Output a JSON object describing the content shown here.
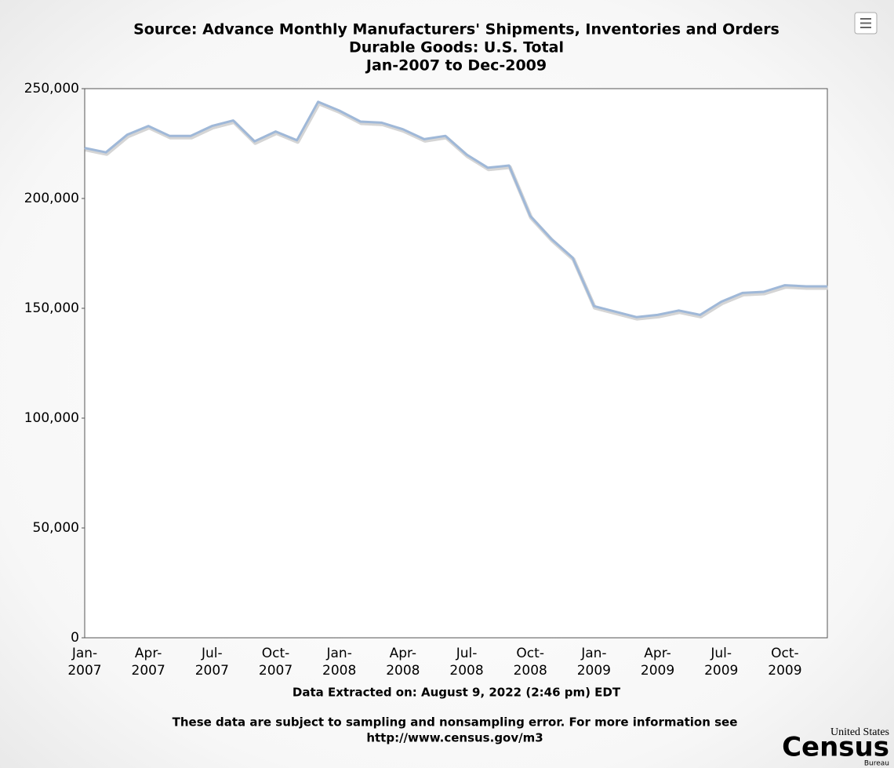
{
  "chart_data": {
    "type": "line",
    "title_lines": [
      "Source: Advance Monthly Manufacturers' Shipments, Inventories and Orders",
      "Durable Goods: U.S. Total",
      "Jan-2007 to Dec-2009"
    ],
    "categories": [
      "Jan-\n2007",
      null,
      null,
      "Apr-\n2007",
      null,
      null,
      "Jul-\n2007",
      null,
      null,
      "Oct-\n2007",
      null,
      null,
      "Jan-\n2008",
      null,
      null,
      "Apr-\n2008",
      null,
      null,
      "Jul-\n2008",
      null,
      null,
      "Oct-\n2008",
      null,
      null,
      "Jan-\n2009",
      null,
      null,
      "Apr-\n2009",
      null,
      null,
      "Jul-\n2009",
      null,
      null,
      "Oct-\n2009",
      null,
      null
    ],
    "values": [
      223000,
      221000,
      229000,
      233000,
      228500,
      228500,
      233000,
      235500,
      226000,
      230500,
      226500,
      244000,
      240000,
      235000,
      234500,
      231500,
      227000,
      228500,
      220000,
      214000,
      215000,
      192000,
      181500,
      173000,
      151000,
      148500,
      146000,
      147000,
      149000,
      147000,
      153000,
      157000,
      157500,
      160500,
      160000,
      160000
    ],
    "color": "#9fb8d8",
    "ylim": [
      0,
      250000
    ],
    "yticks": [
      0,
      {
        "value": 50000,
        "label": "50,000"
      },
      {
        "value": 100000,
        "label": "100,000"
      },
      {
        "value": 150000,
        "label": "150,000"
      },
      {
        "value": 200000,
        "label": "200,000"
      },
      {
        "value": 250000,
        "label": "250,000"
      }
    ],
    "grid": false,
    "extracted": "Data Extracted on: August 9, 2022 (2:46 pm) EDT",
    "footnote_lines": [
      "These data are subject to sampling and nonsampling error. For more information see",
      "http://www.census.gov/m3"
    ]
  },
  "logo": {
    "top": "United States",
    "name": "Census",
    "bottom": "Bureau"
  }
}
